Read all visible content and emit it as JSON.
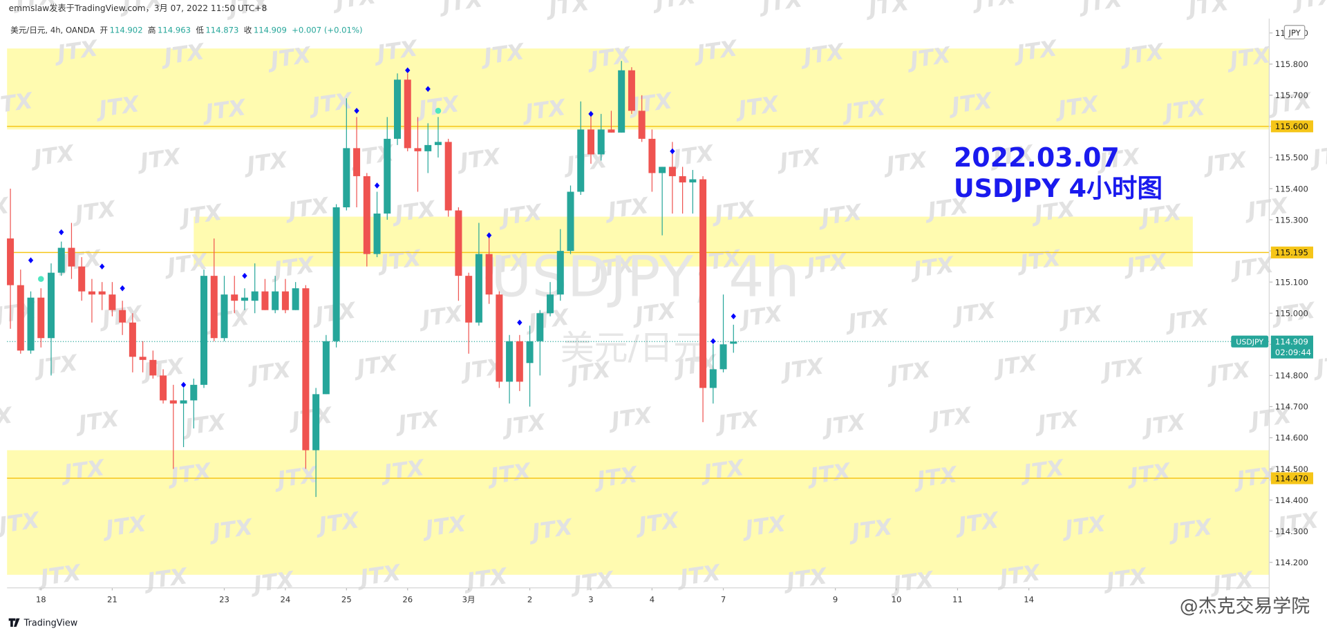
{
  "chart_data": {
    "type": "candlestick",
    "header": "emmslaw发表于TradingView.com，3月 07, 2022 11:50 UTC+8",
    "symbol_info": "美元/日元, 4h, OANDA",
    "ohlc_labels": [
      "开",
      "高",
      "低",
      "收"
    ],
    "change": "+0.007 (+0.01%)",
    "currency": "JPY",
    "watermark_symbol": "USDJPY, 4h",
    "watermark_name": "美元/日元",
    "watermark": "JTX",
    "annotation": [
      "2022.03.07",
      "USDJPY 4小时图"
    ],
    "brand": "TradingView",
    "credit": "@杰克交易学院",
    "up_color": "#26a69a",
    "down_color": "#ef5350",
    "open": [
      115.24,
      115.09,
      114.88,
      115.05,
      114.92,
      115.13,
      115.21,
      115.15,
      115.07,
      115.07,
      115.06,
      115.01,
      114.97,
      114.86,
      114.85,
      114.8,
      114.72,
      114.71,
      114.72,
      114.77,
      115.12,
      114.92,
      115.06,
      115.04,
      115.04,
      115.07,
      115.01,
      115.07,
      115.01,
      115.08,
      114.56,
      114.74,
      114.91,
      115.34,
      115.53,
      115.44,
      115.19,
      115.32,
      115.56,
      115.75,
      115.53,
      115.52,
      115.54,
      115.55,
      115.33,
      115.12,
      114.97,
      115.19,
      115.06,
      114.78,
      114.91,
      114.84,
      114.91,
      115.0,
      115.06,
      115.2,
      115.39,
      115.59,
      115.51,
      115.59,
      115.58,
      115.78,
      115.65,
      115.56,
      115.45,
      115.47,
      115.44,
      115.42,
      115.43,
      114.76,
      114.82,
      114.902
    ],
    "high": [
      115.4,
      115.14,
      115.07,
      115.08,
      115.16,
      115.23,
      115.29,
      115.18,
      115.11,
      115.1,
      115.1,
      115.04,
      115.0,
      114.91,
      114.88,
      114.82,
      114.77,
      114.76,
      114.79,
      115.14,
      115.24,
      115.12,
      115.12,
      115.08,
      115.16,
      115.11,
      115.12,
      115.11,
      115.1,
      115.09,
      114.76,
      114.93,
      115.35,
      115.69,
      115.63,
      115.45,
      115.39,
      115.63,
      115.77,
      115.77,
      115.63,
      115.61,
      115.63,
      115.56,
      115.34,
      115.13,
      115.29,
      115.25,
      115.07,
      114.93,
      114.93,
      114.96,
      115.01,
      115.1,
      115.27,
      115.41,
      115.68,
      115.64,
      115.64,
      115.65,
      115.81,
      115.79,
      115.7,
      115.59,
      115.47,
      115.55,
      115.47,
      115.46,
      115.44,
      114.9,
      115.06,
      114.963
    ],
    "low": [
      114.95,
      114.87,
      114.87,
      114.89,
      114.8,
      115.12,
      115.11,
      115.04,
      114.97,
      115.01,
      114.99,
      114.93,
      114.81,
      114.81,
      114.79,
      114.71,
      114.5,
      114.57,
      114.63,
      114.76,
      114.91,
      114.91,
      115.0,
      115.01,
      115.0,
      115.01,
      115.0,
      115.0,
      115.01,
      114.5,
      114.41,
      114.74,
      114.89,
      115.33,
      115.34,
      115.15,
      115.18,
      115.3,
      115.54,
      115.52,
      115.39,
      115.45,
      115.5,
      115.31,
      115.04,
      114.87,
      114.96,
      115.03,
      114.76,
      114.71,
      114.75,
      114.7,
      114.8,
      114.99,
      115.04,
      115.19,
      115.38,
      115.48,
      115.49,
      115.58,
      115.58,
      115.64,
      115.55,
      115.39,
      115.25,
      115.32,
      115.32,
      115.32,
      114.65,
      114.71,
      114.81,
      114.873
    ],
    "close": [
      115.09,
      114.88,
      115.05,
      114.92,
      115.13,
      115.21,
      115.15,
      115.07,
      115.06,
      115.06,
      115.01,
      114.97,
      114.86,
      114.85,
      114.8,
      114.72,
      114.71,
      114.72,
      114.77,
      115.12,
      114.92,
      115.06,
      115.04,
      115.05,
      115.07,
      115.01,
      115.07,
      115.01,
      115.08,
      114.56,
      114.74,
      114.91,
      115.34,
      115.53,
      115.44,
      115.19,
      115.32,
      115.56,
      115.75,
      115.53,
      115.52,
      115.54,
      115.55,
      115.33,
      115.12,
      114.97,
      115.19,
      115.06,
      114.78,
      114.91,
      114.78,
      114.91,
      115.0,
      115.06,
      115.2,
      115.39,
      115.59,
      115.51,
      115.59,
      115.58,
      115.78,
      115.65,
      115.56,
      115.45,
      115.47,
      115.44,
      115.42,
      115.43,
      114.76,
      114.82,
      114.9,
      114.909
    ],
    "signals": [
      {
        "index": 2,
        "value": 115.17,
        "color": "#0000ff"
      },
      {
        "index": 5,
        "value": 115.26,
        "color": "#0000ff"
      },
      {
        "index": 9,
        "value": 115.15,
        "color": "#0000ff"
      },
      {
        "index": 11,
        "value": 115.08,
        "color": "#0000ff"
      },
      {
        "index": 17,
        "value": 114.77,
        "color": "#0000ff"
      },
      {
        "index": 23,
        "value": 115.12,
        "color": "#0000ff"
      },
      {
        "index": 34,
        "value": 115.65,
        "color": "#0000ff"
      },
      {
        "index": 36,
        "value": 115.41,
        "color": "#0000ff"
      },
      {
        "index": 39,
        "value": 115.78,
        "color": "#0000ff"
      },
      {
        "index": 41,
        "value": 115.72,
        "color": "#0000ff"
      },
      {
        "index": 47,
        "value": 115.25,
        "color": "#0000ff"
      },
      {
        "index": 50,
        "value": 114.97,
        "color": "#0000ff"
      },
      {
        "index": 57,
        "value": 115.64,
        "color": "#0000ff"
      },
      {
        "index": 65,
        "value": 115.52,
        "color": "#0000ff"
      },
      {
        "index": 69,
        "value": 114.91,
        "color": "#0000ff"
      },
      {
        "index": 71,
        "value": 114.99,
        "color": "#0000ff"
      }
    ],
    "dots": [
      {
        "index": 3,
        "value": 115.11,
        "color": "#4ee6c0"
      },
      {
        "index": 42,
        "value": 115.65,
        "color": "#4ee6c0"
      }
    ],
    "zones": [
      {
        "xlim": [
          -0.33,
          123.6
        ],
        "ylim": [
          115.59,
          115.85
        ]
      },
      {
        "xlim": [
          18.0,
          116.1
        ],
        "ylim": [
          115.15,
          115.31
        ]
      },
      {
        "xlim": [
          -0.33,
          123.6
        ],
        "ylim": [
          114.16,
          114.56
        ]
      }
    ],
    "zone_color": "#fffbb0",
    "levels": [
      {
        "value": 115.6,
        "label": "115.600"
      },
      {
        "value": 115.195,
        "label": "115.195"
      },
      {
        "value": 114.47,
        "label": "114.470"
      }
    ],
    "level_color": "#f5c518",
    "last_price": {
      "value": 114.909,
      "symbol": "USDJPY",
      "countdown": "02:09:44"
    },
    "xlim": [
      -0.33,
      123.6
    ],
    "xticks": [
      {
        "value": 3,
        "label": "18"
      },
      {
        "value": 10,
        "label": "21"
      },
      {
        "value": 21,
        "label": "23"
      },
      {
        "value": 27,
        "label": "24"
      },
      {
        "value": 33,
        "label": "25"
      },
      {
        "value": 39,
        "label": "26"
      },
      {
        "value": 45,
        "label": "3月"
      },
      {
        "value": 51,
        "label": "2"
      },
      {
        "value": 57,
        "label": "3"
      },
      {
        "value": 63,
        "label": "4"
      },
      {
        "value": 70,
        "label": "7"
      },
      {
        "value": 81,
        "label": "9"
      },
      {
        "value": 87,
        "label": "10"
      },
      {
        "value": 93,
        "label": "11"
      },
      {
        "value": 100,
        "label": "14"
      }
    ],
    "ylim": [
      114.118,
      115.946
    ],
    "yticks": [
      {
        "value": 114.2,
        "label": "114.200"
      },
      {
        "value": 114.3,
        "label": "114.300"
      },
      {
        "value": 114.4,
        "label": "114.400"
      },
      {
        "value": 114.5,
        "label": "114.500"
      },
      {
        "value": 114.6,
        "label": "114.600"
      },
      {
        "value": 114.7,
        "label": "114.700"
      },
      {
        "value": 114.8,
        "label": "114.800"
      },
      {
        "value": 114.9,
        "label": "114.900"
      },
      {
        "value": 115.0,
        "label": "115.000"
      },
      {
        "value": 115.1,
        "label": "115.100"
      },
      {
        "value": 115.2,
        "label": "115.200"
      },
      {
        "value": 115.3,
        "label": "115.300"
      },
      {
        "value": 115.4,
        "label": "115.400"
      },
      {
        "value": 115.5,
        "label": "115.500"
      },
      {
        "value": 115.6,
        "label": "115.600"
      },
      {
        "value": 115.7,
        "label": "115.700"
      },
      {
        "value": 115.8,
        "label": "115.800"
      },
      {
        "value": 115.9,
        "label": "115.900"
      }
    ]
  }
}
